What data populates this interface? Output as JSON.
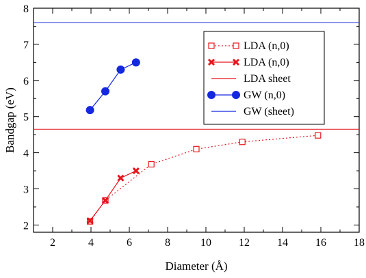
{
  "chart_data": {
    "type": "line",
    "title": "",
    "xlabel": "Diameter (Å)",
    "ylabel": "Bandgap (eV)",
    "xlim": [
      1,
      18
    ],
    "ylim": [
      1.8,
      8
    ],
    "xticks": [
      2,
      4,
      6,
      8,
      10,
      12,
      14,
      16,
      18
    ],
    "yticks": [
      2,
      3,
      4,
      5,
      6,
      7,
      8
    ],
    "x_tick_labels": [
      "2",
      "4",
      "6",
      "8",
      "10",
      "12",
      "14",
      "16",
      "18"
    ],
    "y_tick_labels": [
      "2",
      "3",
      "4",
      "5",
      "6",
      "7",
      "8"
    ],
    "grid": false,
    "legend_position": "top-right",
    "series": [
      {
        "name": "LDA (n,0)",
        "color": "#e8141c",
        "style": "dotted",
        "marker": "open-square",
        "x": [
          3.95,
          4.75,
          7.15,
          9.5,
          11.9,
          15.85
        ],
        "y": [
          2.1,
          2.68,
          3.68,
          4.1,
          4.3,
          4.48
        ]
      },
      {
        "name": "LDA (n,0)",
        "color": "#e8141c",
        "style": "solid",
        "marker": "x-cross",
        "x": [
          3.95,
          4.75,
          5.55,
          6.35
        ],
        "y": [
          2.12,
          2.68,
          3.3,
          3.5
        ]
      },
      {
        "name": "LDA sheet",
        "color": "#e8141c",
        "style": "solid",
        "marker": "none",
        "hline": 4.65
      },
      {
        "name": "GW  (n,0)",
        "color": "#1428e0",
        "style": "solid",
        "marker": "filled-circle",
        "x": [
          3.95,
          4.75,
          5.55,
          6.35
        ],
        "y": [
          5.18,
          5.7,
          6.3,
          6.5
        ]
      },
      {
        "name": "GW (sheet)",
        "color": "#1428e0",
        "style": "solid",
        "marker": "none",
        "hline": 7.6
      }
    ]
  }
}
